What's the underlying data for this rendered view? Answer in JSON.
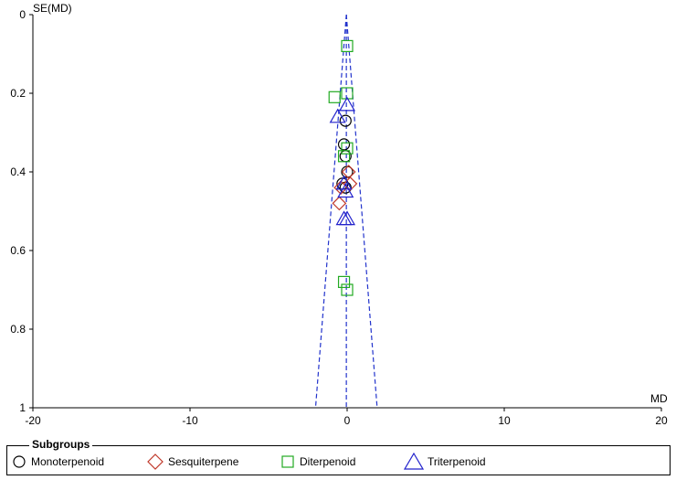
{
  "chart_data": {
    "type": "scatter",
    "title": "",
    "xlabel": "MD",
    "ylabel": "SE(MD)",
    "xlim": [
      -20,
      20
    ],
    "ylim": [
      0,
      1
    ],
    "y_reversed": true,
    "x_ticks": [
      -20,
      -10,
      0,
      10,
      20
    ],
    "y_ticks": [
      0,
      0.2,
      0.4,
      0.6,
      0.8,
      1
    ],
    "x_tick_labels": [
      "-20",
      "-10",
      "0",
      "10",
      "20"
    ],
    "y_tick_labels": [
      "0",
      "0.2",
      "0.4",
      "0.6",
      "0.8",
      "1"
    ],
    "pooled_estimate": -0.05,
    "funnel_apex_se": 0.0,
    "funnel_base_se": 1.0,
    "funnel_multiplier": 1.96,
    "legend": {
      "title": "Subgroups",
      "placement": "bottom"
    },
    "series": [
      {
        "name": "Monoterpenoid",
        "marker": "circle",
        "color": "#000000",
        "x": [
          -0.1,
          -0.2,
          -0.1,
          0.0,
          -0.3,
          -0.1
        ],
        "y": [
          0.27,
          0.33,
          0.36,
          0.4,
          0.43,
          0.44
        ]
      },
      {
        "name": "Sesquiterpene",
        "marker": "diamond",
        "color": "#c0392b",
        "x": [
          0.1,
          0.2,
          -0.4,
          -0.5
        ],
        "y": [
          0.4,
          0.43,
          0.44,
          0.48
        ]
      },
      {
        "name": "Diterpenoid",
        "marker": "square",
        "color": "#22aa22",
        "x": [
          0.0,
          0.0,
          -0.8,
          0.0,
          -0.2,
          -0.2,
          0.0
        ],
        "y": [
          0.08,
          0.2,
          0.21,
          0.34,
          0.36,
          0.68,
          0.7
        ]
      },
      {
        "name": "Triterpenoid",
        "marker": "triangle",
        "color": "#2222cc",
        "x": [
          0.0,
          -0.6,
          -0.2,
          -0.1,
          -0.2,
          0.0
        ],
        "y": [
          0.23,
          0.26,
          0.43,
          0.45,
          0.52,
          0.52
        ]
      }
    ]
  }
}
